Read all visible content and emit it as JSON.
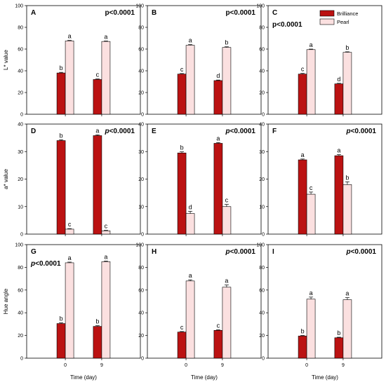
{
  "colors": {
    "brilliance": "#bb1212",
    "pearl": "#fbe0e0",
    "stroke": "#000000"
  },
  "legend": {
    "brilliance": "Brilliance",
    "pearl": "Pearl",
    "placement": "top-right of panel C"
  },
  "chart_data": [
    {
      "type": "bar",
      "panel": "A",
      "categories": [
        "0",
        "9"
      ],
      "ylabel": "L* value",
      "ylim": [
        0,
        100
      ],
      "yticks": [
        0,
        20,
        40,
        60,
        80,
        100
      ],
      "pvalue": "p<0.0001",
      "p_prefix_italic": false,
      "series": [
        {
          "name": "Brilliance",
          "values": [
            38,
            32
          ],
          "errors": [
            0.6,
            0.5
          ],
          "letters": [
            "b",
            "c"
          ]
        },
        {
          "name": "Pearl",
          "values": [
            67.5,
            67
          ],
          "errors": [
            0.5,
            0.5
          ],
          "letters": [
            "a",
            "a"
          ]
        }
      ]
    },
    {
      "type": "bar",
      "panel": "B",
      "categories": [
        "0",
        "9"
      ],
      "ylim": [
        0,
        100
      ],
      "yticks": [
        0,
        20,
        40,
        60,
        80,
        100
      ],
      "pvalue": "p<0.0001",
      "p_prefix_italic": false,
      "series": [
        {
          "name": "Brilliance",
          "values": [
            37,
            31
          ],
          "errors": [
            0.5,
            0.5
          ],
          "letters": [
            "c",
            "d"
          ]
        },
        {
          "name": "Pearl",
          "values": [
            63.5,
            61.5
          ],
          "errors": [
            0.6,
            0.6
          ],
          "letters": [
            "a",
            "b"
          ]
        }
      ]
    },
    {
      "type": "bar",
      "panel": "C",
      "categories": [
        "0",
        "9"
      ],
      "ylim": [
        0,
        100
      ],
      "yticks": [
        0,
        20,
        40,
        60,
        80,
        100
      ],
      "pvalue": "p<0.0001",
      "p_prefix_italic": false,
      "series": [
        {
          "name": "Brilliance",
          "values": [
            37,
            28
          ],
          "errors": [
            0.6,
            0.5
          ],
          "letters": [
            "c",
            "d"
          ]
        },
        {
          "name": "Pearl",
          "values": [
            59.5,
            57
          ],
          "errors": [
            0.5,
            0.5
          ],
          "letters": [
            "a",
            "b"
          ]
        }
      ]
    },
    {
      "type": "bar",
      "panel": "D",
      "categories": [
        "0",
        "9"
      ],
      "ylabel": "a* value",
      "ylim": [
        0,
        40
      ],
      "yticks": [
        0,
        10,
        20,
        30,
        40
      ],
      "pvalue": "p<0.0001",
      "p_prefix_italic": true,
      "series": [
        {
          "name": "Brilliance",
          "values": [
            34,
            35.8
          ],
          "errors": [
            0.3,
            0.3
          ],
          "letters": [
            "b",
            "a"
          ]
        },
        {
          "name": "Pearl",
          "values": [
            1.8,
            1.2
          ],
          "errors": [
            0.2,
            0.2
          ],
          "letters": [
            "c",
            "c"
          ]
        }
      ]
    },
    {
      "type": "bar",
      "panel": "E",
      "categories": [
        "0",
        "9"
      ],
      "ylim": [
        0,
        40
      ],
      "yticks": [
        0,
        10,
        20,
        30,
        40
      ],
      "pvalue": "p<0.0001",
      "p_prefix_italic": true,
      "series": [
        {
          "name": "Brilliance",
          "values": [
            29.5,
            33
          ],
          "errors": [
            0.4,
            0.3
          ],
          "letters": [
            "b",
            "a"
          ]
        },
        {
          "name": "Pearl",
          "values": [
            7.5,
            10
          ],
          "errors": [
            0.8,
            0.8
          ],
          "letters": [
            "d",
            "c"
          ]
        }
      ]
    },
    {
      "type": "bar",
      "panel": "F",
      "categories": [
        "0",
        "9"
      ],
      "ylim": [
        0,
        40
      ],
      "yticks": [
        0,
        10,
        20,
        30,
        40
      ],
      "pvalue": "p<0.0001",
      "p_prefix_italic": true,
      "series": [
        {
          "name": "Brilliance",
          "values": [
            27,
            28.5
          ],
          "errors": [
            0.3,
            0.4
          ],
          "letters": [
            "a",
            "a"
          ]
        },
        {
          "name": "Pearl",
          "values": [
            14.5,
            18
          ],
          "errors": [
            0.8,
            1.0
          ],
          "letters": [
            "c",
            "b"
          ]
        }
      ]
    },
    {
      "type": "bar",
      "panel": "G",
      "categories": [
        "0",
        "9"
      ],
      "ylabel": "Hue angle",
      "xlabel": "Time (day)",
      "ylim": [
        0,
        100
      ],
      "yticks": [
        0,
        20,
        40,
        60,
        80,
        100
      ],
      "pvalue": "p<0.0001",
      "p_prefix_italic": true,
      "series": [
        {
          "name": "Brilliance",
          "values": [
            30.5,
            28
          ],
          "errors": [
            0.6,
            0.6
          ],
          "letters": [
            "b",
            "b"
          ]
        },
        {
          "name": "Pearl",
          "values": [
            84,
            85
          ],
          "errors": [
            0.6,
            0.6
          ],
          "letters": [
            "a",
            "a"
          ]
        }
      ]
    },
    {
      "type": "bar",
      "panel": "H",
      "categories": [
        "0",
        "9"
      ],
      "xlabel": "Time (day)",
      "ylim": [
        0,
        100
      ],
      "yticks": [
        0,
        20,
        40,
        60,
        80,
        100
      ],
      "pvalue": "p<0.0001",
      "p_prefix_italic": true,
      "series": [
        {
          "name": "Brilliance",
          "values": [
            23,
            24.5
          ],
          "errors": [
            0.5,
            0.5
          ],
          "letters": [
            "c",
            "c"
          ]
        },
        {
          "name": "Pearl",
          "values": [
            68,
            62.5
          ],
          "errors": [
            1.0,
            2.0
          ],
          "letters": [
            "a",
            "a"
          ]
        }
      ]
    },
    {
      "type": "bar",
      "panel": "I",
      "categories": [
        "0",
        "9"
      ],
      "xlabel": "Time (day)",
      "ylim": [
        0,
        100
      ],
      "yticks": [
        0,
        20,
        40,
        60,
        80,
        100
      ],
      "pvalue": "p<0.0001",
      "p_prefix_italic": true,
      "series": [
        {
          "name": "Brilliance",
          "values": [
            19.5,
            18
          ],
          "errors": [
            0.5,
            0.5
          ],
          "letters": [
            "b",
            "b"
          ]
        },
        {
          "name": "Pearl",
          "values": [
            52,
            51.5
          ],
          "errors": [
            1.8,
            1.8
          ],
          "letters": [
            "a",
            "a"
          ]
        }
      ]
    }
  ]
}
